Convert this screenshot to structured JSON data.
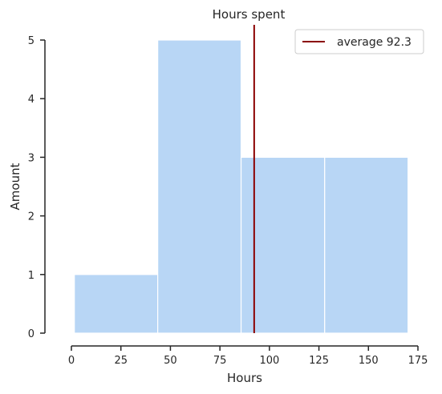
{
  "chart_data": {
    "type": "histogram",
    "title": "Hours spent",
    "xlabel": "Hours",
    "ylabel": "Amount",
    "xlim": [
      0,
      175
    ],
    "ylim": [
      0,
      5
    ],
    "xticks": [
      0,
      25,
      50,
      75,
      100,
      125,
      150,
      175
    ],
    "yticks": [
      0,
      1,
      2,
      3,
      4,
      5
    ],
    "bins": [
      {
        "start": 1.5,
        "end": 43.6,
        "count": 1
      },
      {
        "start": 43.6,
        "end": 85.7,
        "count": 5
      },
      {
        "start": 85.7,
        "end": 127.9,
        "count": 3
      },
      {
        "start": 127.9,
        "end": 170.0,
        "count": 3
      }
    ],
    "bar_color": "#b8d6f5",
    "average": {
      "value": 92.3,
      "label": "average 92.3",
      "color": "#8b0000"
    },
    "legend_position": "top-right",
    "grid": false
  }
}
